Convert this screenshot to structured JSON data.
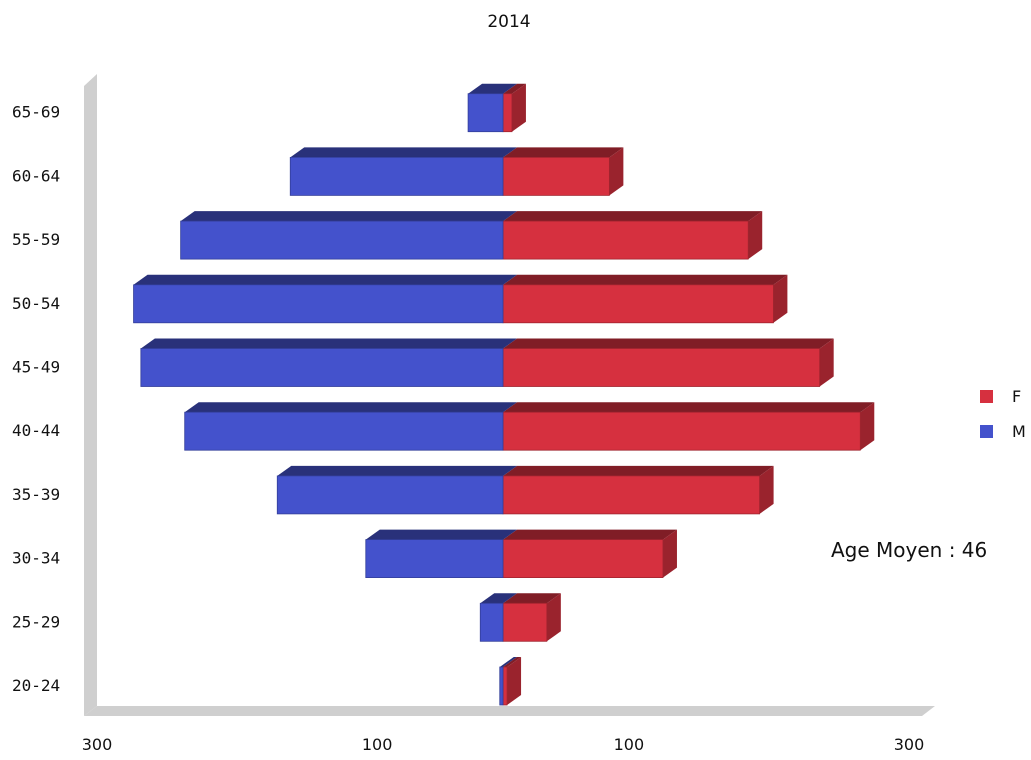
{
  "chart_data": {
    "type": "bar",
    "orientation": "horizontal",
    "subtype": "population-pyramid-3d",
    "title": "2014",
    "categories": [
      "20-24",
      "25-29",
      "30-34",
      "35-39",
      "40-44",
      "45-49",
      "50-54",
      "55-59",
      "60-64",
      "65-69"
    ],
    "series": [
      {
        "name": "F",
        "side": "right",
        "color": "#d6303f",
        "values": [
          5,
          54,
          197,
          316,
          440,
          390,
          333,
          302,
          131,
          11
        ]
      },
      {
        "name": "M",
        "side": "left",
        "color": "#4452cc",
        "values": [
          4,
          28,
          169,
          278,
          392,
          446,
          455,
          397,
          262,
          43
        ]
      }
    ],
    "x_tick_labels": [
      "300",
      "100",
      "100",
      "300"
    ],
    "x_ticks": [
      -500,
      -155,
      155,
      500
    ],
    "xlim": [
      -500,
      500
    ],
    "legend": {
      "position": "right",
      "entries": [
        "F",
        "M"
      ]
    },
    "grid": false,
    "annotation": "Age Moyen : 46"
  }
}
